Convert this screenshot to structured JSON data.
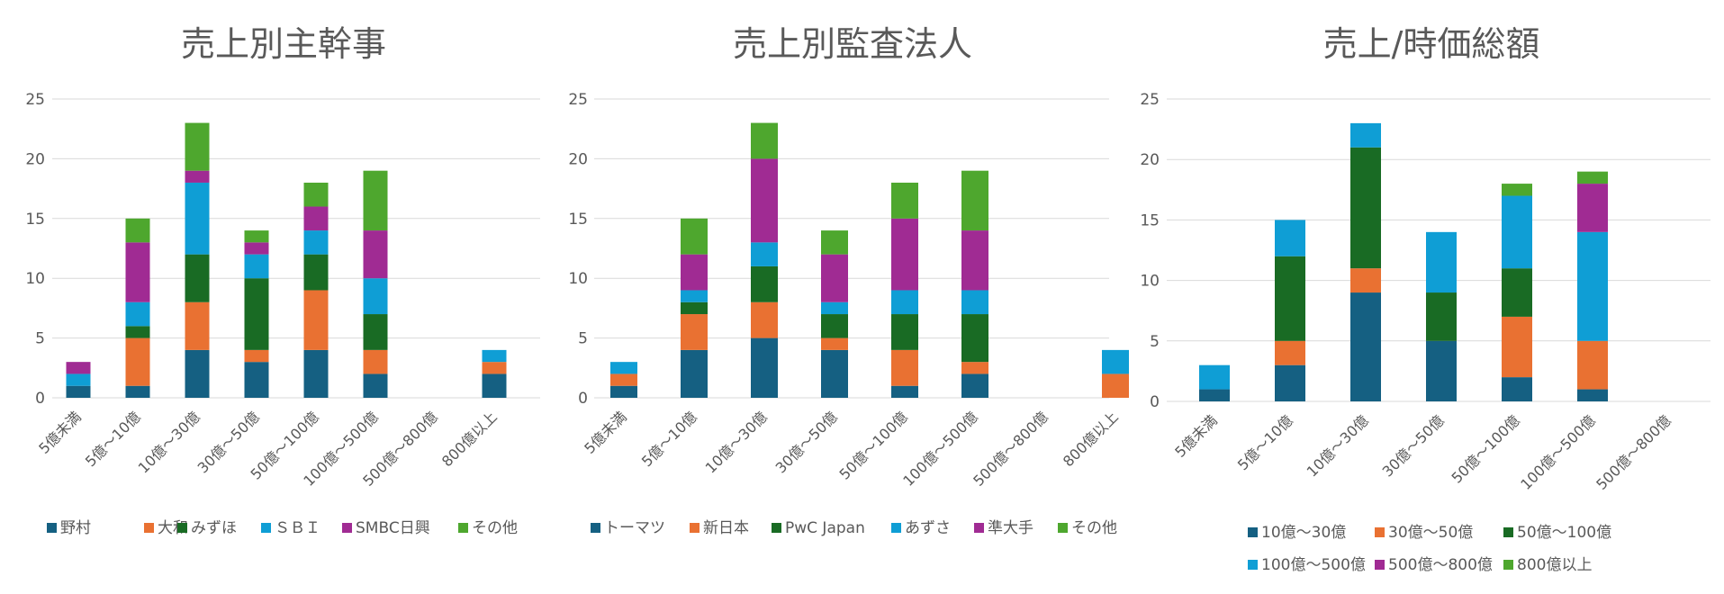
{
  "chart_data": [
    {
      "type": "bar",
      "stacked": true,
      "title": "売上別主幹事",
      "categories": [
        "5億未満",
        "5億～10億",
        "10億～30億",
        "30億～50億",
        "50億～100億",
        "100億～500億",
        "500億～800億",
        "800億以上"
      ],
      "ylim": [
        0,
        25
      ],
      "yticks": [
        0,
        5,
        10,
        15,
        20,
        25
      ],
      "grid": true,
      "legend_position": "bottom",
      "series": [
        {
          "name": "野村",
          "color": "#156082",
          "values": [
            1,
            1,
            4,
            3,
            4,
            2,
            0,
            2
          ]
        },
        {
          "name": "大和",
          "color": "#e97132",
          "values": [
            0,
            4,
            4,
            1,
            5,
            2,
            0,
            1
          ]
        },
        {
          "name": "みずほ",
          "color": "#196b24",
          "values": [
            0,
            1,
            4,
            6,
            3,
            3,
            0,
            0
          ]
        },
        {
          "name": "ＳＢＩ",
          "color": "#0f9ed5",
          "values": [
            1,
            2,
            6,
            2,
            2,
            3,
            0,
            1
          ]
        },
        {
          "name": "SMBC日興",
          "color": "#a02b93",
          "values": [
            1,
            5,
            1,
            1,
            2,
            4,
            0,
            0
          ]
        },
        {
          "name": "その他",
          "color": "#4ea72e",
          "values": [
            0,
            2,
            4,
            1,
            2,
            5,
            0,
            0
          ]
        }
      ]
    },
    {
      "type": "bar",
      "stacked": true,
      "title": "売上別監査法人",
      "categories": [
        "5億未満",
        "5億～10億",
        "10億～30億",
        "30億～50億",
        "50億～100億",
        "100億～500億",
        "500億～800億",
        "800億以上"
      ],
      "ylim": [
        0,
        25
      ],
      "yticks": [
        0,
        5,
        10,
        15,
        20,
        25
      ],
      "grid": true,
      "legend_position": "bottom",
      "series": [
        {
          "name": "トーマツ",
          "color": "#156082",
          "values": [
            1,
            4,
            5,
            4,
            1,
            2,
            0,
            0
          ]
        },
        {
          "name": "新日本",
          "color": "#e97132",
          "values": [
            1,
            3,
            3,
            1,
            3,
            1,
            0,
            2
          ]
        },
        {
          "name": "PwC Japan",
          "color": "#196b24",
          "values": [
            0,
            1,
            3,
            2,
            3,
            4,
            0,
            0
          ]
        },
        {
          "name": "あずさ",
          "color": "#0f9ed5",
          "values": [
            1,
            1,
            2,
            1,
            2,
            2,
            0,
            2
          ]
        },
        {
          "name": "準大手",
          "color": "#a02b93",
          "values": [
            0,
            3,
            7,
            4,
            6,
            5,
            0,
            0
          ]
        },
        {
          "name": "その他",
          "color": "#4ea72e",
          "values": [
            0,
            3,
            3,
            2,
            3,
            5,
            0,
            0
          ]
        }
      ]
    },
    {
      "type": "bar",
      "stacked": true,
      "title": "売上/時価総額",
      "categories": [
        "5億未満",
        "5億～10億",
        "10億～30億",
        "30億～50億",
        "50億～100億",
        "100億～500億",
        "500億～800億"
      ],
      "ylim": [
        0,
        25
      ],
      "yticks": [
        0,
        5,
        10,
        15,
        20,
        25
      ],
      "grid": true,
      "legend_position": "bottom",
      "series": [
        {
          "name": "10億～30億",
          "color": "#156082",
          "values": [
            1,
            3,
            9,
            5,
            2,
            1,
            0
          ]
        },
        {
          "name": "30億～50億",
          "color": "#e97132",
          "values": [
            0,
            2,
            2,
            0,
            5,
            4,
            0
          ]
        },
        {
          "name": "50億～100億",
          "color": "#196b24",
          "values": [
            0,
            7,
            10,
            4,
            4,
            0,
            0
          ]
        },
        {
          "name": "100億～500億",
          "color": "#0f9ed5",
          "values": [
            2,
            3,
            2,
            5,
            6,
            9,
            0
          ]
        },
        {
          "name": "500億～800億",
          "color": "#a02b93",
          "values": [
            0,
            0,
            0,
            0,
            0,
            4,
            0
          ]
        },
        {
          "name": "800億以上",
          "color": "#4ea72e",
          "values": [
            0,
            0,
            0,
            0,
            1,
            1,
            0
          ]
        }
      ]
    }
  ]
}
